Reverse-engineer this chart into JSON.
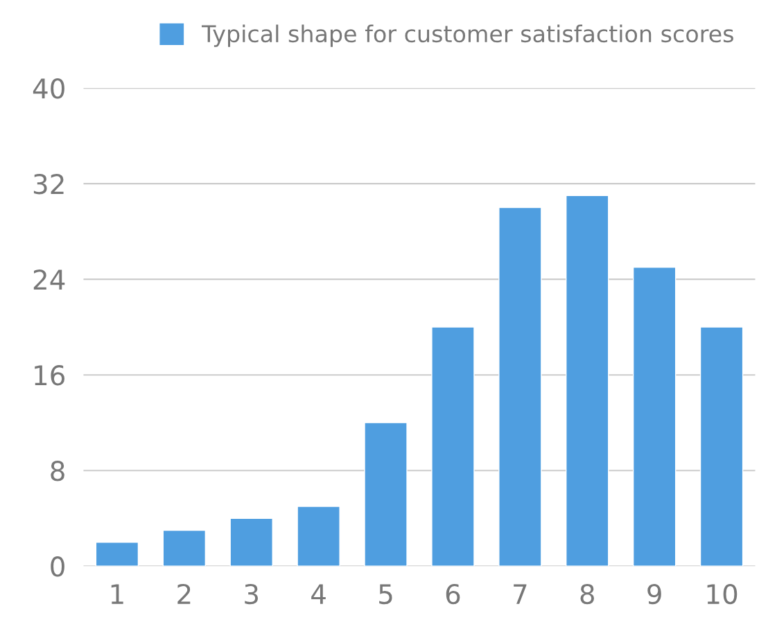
{
  "chart_data": {
    "type": "bar",
    "categories": [
      "1",
      "2",
      "3",
      "4",
      "5",
      "6",
      "7",
      "8",
      "9",
      "10"
    ],
    "series": [
      {
        "name": "Typical shape for customer satisfaction scores",
        "color": "#4f9ee0",
        "values": [
          2,
          3,
          4,
          5,
          12,
          20,
          30,
          31,
          25,
          20
        ]
      }
    ],
    "ylim": [
      0,
      40
    ],
    "yticks": [
      0,
      8,
      16,
      24,
      32,
      40
    ],
    "grid": "y",
    "legend": "top right"
  }
}
